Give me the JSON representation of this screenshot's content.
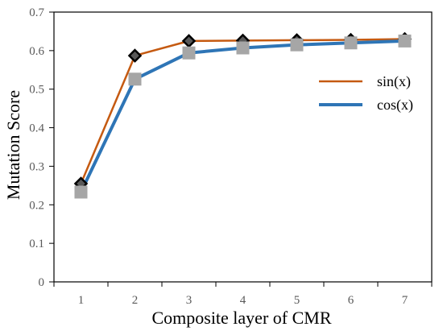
{
  "chart_data": {
    "type": "line",
    "title": "",
    "xlabel": "Composite layer of CMR",
    "ylabel": "Mutation Score",
    "x": [
      1,
      2,
      3,
      4,
      5,
      6,
      7
    ],
    "x_tick_labels": [
      "1",
      "2",
      "3",
      "4",
      "5",
      "6",
      "7"
    ],
    "ylim": [
      0,
      0.7
    ],
    "y_tick_labels": [
      "0",
      "0.1",
      "0.2",
      "0.3",
      "0.4",
      "0.5",
      "0.6",
      "0.7"
    ],
    "grid": false,
    "legend_position": "right",
    "series": [
      {
        "name": "sin(x)",
        "values": [
          0.255,
          0.587,
          0.625,
          0.626,
          0.627,
          0.628,
          0.63
        ],
        "color": "#C55A11",
        "marker": "diamond",
        "marker_color": "#595959"
      },
      {
        "name": "cos(x)",
        "values": [
          0.233,
          0.526,
          0.594,
          0.607,
          0.615,
          0.62,
          0.625
        ],
        "color": "#2E75B6",
        "marker": "square",
        "marker_color": "#A6A6A6"
      }
    ]
  }
}
